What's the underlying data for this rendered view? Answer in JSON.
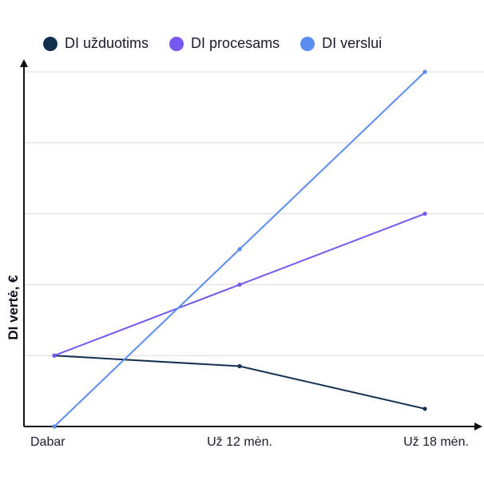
{
  "chart_data": {
    "type": "line",
    "title": "",
    "xlabel": "",
    "ylabel": "DI vertė, €",
    "categories": [
      "Dabar",
      "Už 12 mėn.",
      "Už 18 mėn."
    ],
    "ylim": [
      0,
      5
    ],
    "grid": true,
    "legend_position": "top",
    "series": [
      {
        "name": "DI užduotims",
        "color": "#14304f",
        "values": [
          1.0,
          0.85,
          0.25
        ]
      },
      {
        "name": "DI procesams",
        "color": "#7657f0",
        "values": [
          1.0,
          2.0,
          3.0
        ]
      },
      {
        "name": "DI verslui",
        "color": "#5b8cf2",
        "values": [
          0.0,
          2.5,
          5.0
        ]
      }
    ]
  }
}
